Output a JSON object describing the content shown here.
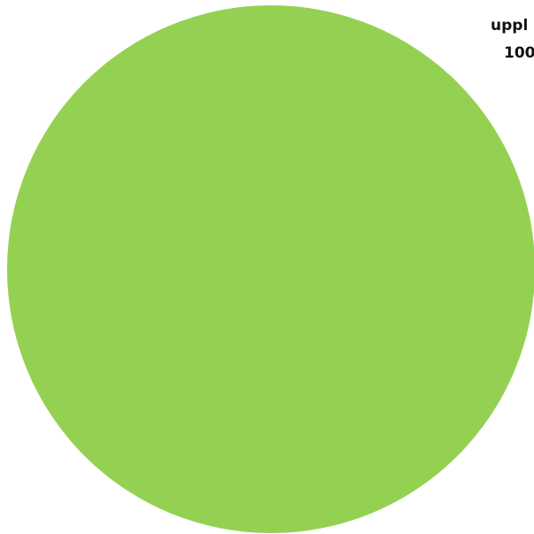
{
  "chart_data": {
    "type": "pie",
    "title": "",
    "slices": [
      {
        "label": "uppl",
        "value_label": "100",
        "value": 100,
        "color": "#94d152"
      }
    ]
  }
}
